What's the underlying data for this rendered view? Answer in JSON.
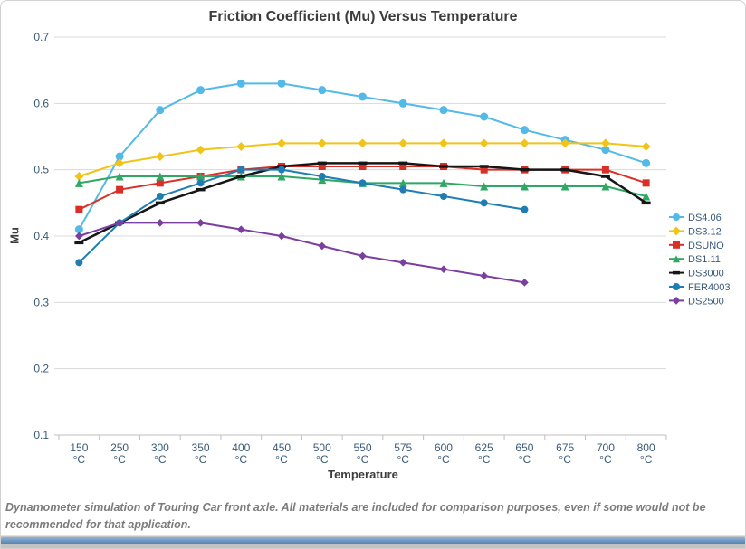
{
  "chart_data": {
    "type": "line",
    "title": "Friction Coefficient (Mu) Versus Temperature",
    "xlabel": "Temperature",
    "ylabel": "Mu",
    "ylim": [
      0.1,
      0.7
    ],
    "ytick_step": 0.1,
    "grid": true,
    "legend_position": "right",
    "category_unit": "°C",
    "categories": [
      "150",
      "250",
      "300",
      "350",
      "400",
      "450",
      "500",
      "550",
      "575",
      "600",
      "625",
      "650",
      "675",
      "700",
      "800"
    ],
    "series": [
      {
        "name": "DS4.06",
        "color": "#53B9E9",
        "marker": "circle",
        "marker_size": 9,
        "values": [
          0.41,
          0.52,
          0.59,
          0.62,
          0.63,
          0.63,
          0.62,
          0.61,
          0.6,
          0.59,
          0.58,
          0.56,
          0.545,
          0.53,
          0.51
        ]
      },
      {
        "name": "DS3.12",
        "color": "#F0C419",
        "marker": "diamond",
        "marker_size": 8,
        "values": [
          0.49,
          0.51,
          0.52,
          0.53,
          0.535,
          0.54,
          0.54,
          0.54,
          0.54,
          0.54,
          0.54,
          0.54,
          0.54,
          0.54,
          0.535
        ]
      },
      {
        "name": "DSUNO",
        "color": "#DA2F27",
        "marker": "square",
        "marker_size": 8,
        "values": [
          0.44,
          0.47,
          0.48,
          0.49,
          0.5,
          0.505,
          0.505,
          0.505,
          0.505,
          0.505,
          0.5,
          0.5,
          0.5,
          0.5,
          0.48
        ]
      },
      {
        "name": "DS1.11",
        "color": "#2FA863",
        "marker": "triangle",
        "marker_size": 9,
        "values": [
          0.48,
          0.49,
          0.49,
          0.49,
          0.49,
          0.49,
          0.485,
          0.48,
          0.48,
          0.48,
          0.475,
          0.475,
          0.475,
          0.475,
          0.46
        ]
      },
      {
        "name": "DS3000",
        "color": "#161616",
        "marker": "dash",
        "marker_size": 10,
        "line_width": 2.5,
        "values": [
          0.39,
          0.42,
          0.45,
          0.47,
          0.49,
          0.505,
          0.51,
          0.51,
          0.51,
          0.505,
          0.505,
          0.5,
          0.5,
          0.49,
          0.45
        ]
      },
      {
        "name": "FER4003",
        "color": "#1F7DB2",
        "marker": "circle",
        "marker_size": 8,
        "values": [
          0.36,
          0.42,
          0.46,
          0.48,
          0.5,
          0.5,
          0.49,
          0.48,
          0.47,
          0.46,
          0.45,
          0.44
        ]
      },
      {
        "name": "DS2500",
        "color": "#7B3FA0",
        "marker": "diamond",
        "marker_size": 7,
        "values": [
          0.4,
          0.42,
          0.42,
          0.42,
          0.41,
          0.4,
          0.385,
          0.37,
          0.36,
          0.35,
          0.34,
          0.33
        ]
      }
    ]
  },
  "caption": "Dynamometer simulation of Touring Car front axle. All materials are included for comparison purposes, even if some would not be recommended for that application."
}
